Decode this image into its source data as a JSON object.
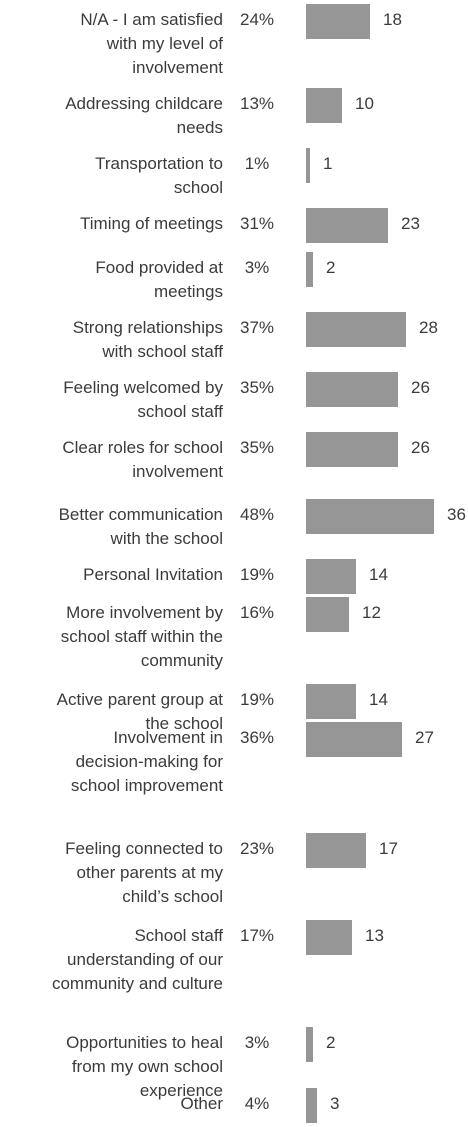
{
  "colors": {
    "bar": "#969696",
    "text": "#3b3b3b"
  },
  "chart_data": {
    "type": "bar",
    "orientation": "horizontal",
    "categories": [
      "N/A - I am satisfied with my level of involvement",
      "Addressing childcare needs",
      "Transportation to school",
      "Timing of meetings",
      "Food provided at meetings",
      "Strong relationships with school staff",
      "Feeling welcomed by school staff",
      "Clear roles for school involvement",
      "Better communication with the school",
      "Personal Invitation",
      "More involvement by school staff within the community",
      "Active parent group at the school",
      "Involvement in decision-making for school improvement",
      "Feeling connected to other parents at my child’s school",
      "School staff understanding of our community and culture",
      "Opportunities to heal from my own school experience",
      "Other"
    ],
    "percents": [
      "24%",
      "13%",
      "1%",
      "31%",
      "3%",
      "37%",
      "35%",
      "35%",
      "48%",
      "19%",
      "16%",
      "19%",
      "36%",
      "23%",
      "17%",
      "3%",
      "4%"
    ],
    "values": [
      18,
      10,
      1,
      23,
      2,
      28,
      26,
      26,
      36,
      14,
      12,
      14,
      27,
      17,
      13,
      2,
      3
    ],
    "xlim": [
      0,
      36
    ]
  }
}
